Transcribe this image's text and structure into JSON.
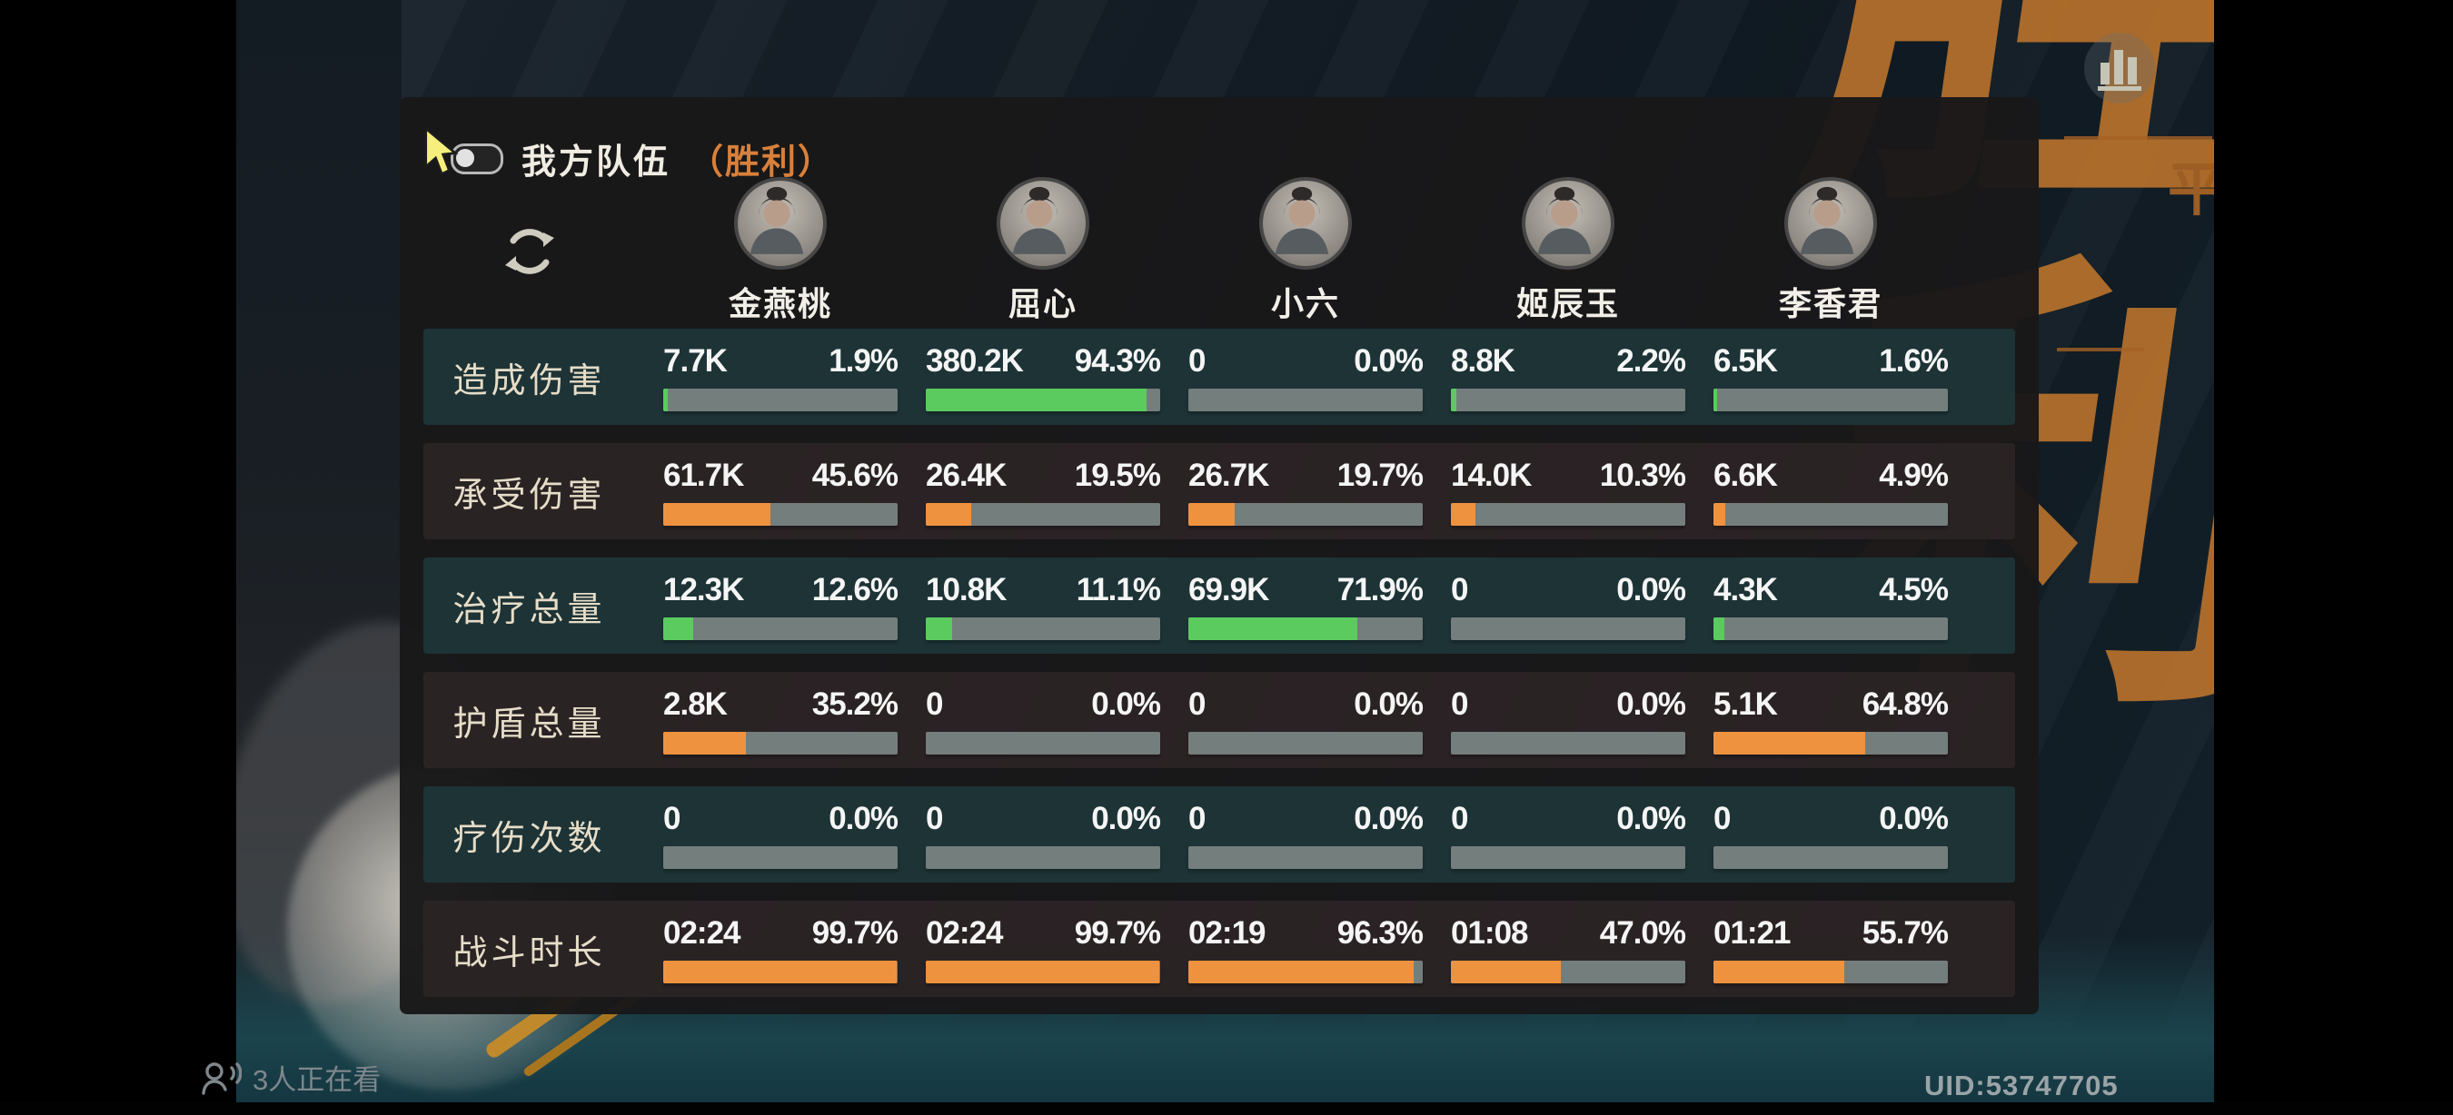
{
  "header": {
    "title": "我方队伍",
    "result": "（胜利）"
  },
  "team": {
    "characters": [
      {
        "name": "金燕桃"
      },
      {
        "name": "屈心"
      },
      {
        "name": "小六"
      },
      {
        "name": "姬辰玉"
      },
      {
        "name": "李香君"
      }
    ]
  },
  "stats": {
    "rows": [
      {
        "label": "造成伤害",
        "color": "green",
        "cells": [
          {
            "value": "7.7K",
            "pct": "1.9%",
            "fill": 1.9
          },
          {
            "value": "380.2K",
            "pct": "94.3%",
            "fill": 94.3
          },
          {
            "value": "0",
            "pct": "0.0%",
            "fill": 0
          },
          {
            "value": "8.8K",
            "pct": "2.2%",
            "fill": 2.2
          },
          {
            "value": "6.5K",
            "pct": "1.6%",
            "fill": 1.6
          }
        ]
      },
      {
        "label": "承受伤害",
        "color": "orange",
        "cells": [
          {
            "value": "61.7K",
            "pct": "45.6%",
            "fill": 45.6
          },
          {
            "value": "26.4K",
            "pct": "19.5%",
            "fill": 19.5
          },
          {
            "value": "26.7K",
            "pct": "19.7%",
            "fill": 19.7
          },
          {
            "value": "14.0K",
            "pct": "10.3%",
            "fill": 10.3
          },
          {
            "value": "6.6K",
            "pct": "4.9%",
            "fill": 4.9
          }
        ]
      },
      {
        "label": "治疗总量",
        "color": "green",
        "cells": [
          {
            "value": "12.3K",
            "pct": "12.6%",
            "fill": 12.6
          },
          {
            "value": "10.8K",
            "pct": "11.1%",
            "fill": 11.1
          },
          {
            "value": "69.9K",
            "pct": "71.9%",
            "fill": 71.9
          },
          {
            "value": "0",
            "pct": "0.0%",
            "fill": 0
          },
          {
            "value": "4.3K",
            "pct": "4.5%",
            "fill": 4.5
          }
        ]
      },
      {
        "label": "护盾总量",
        "color": "orange",
        "cells": [
          {
            "value": "2.8K",
            "pct": "35.2%",
            "fill": 35.2
          },
          {
            "value": "0",
            "pct": "0.0%",
            "fill": 0
          },
          {
            "value": "0",
            "pct": "0.0%",
            "fill": 0
          },
          {
            "value": "0",
            "pct": "0.0%",
            "fill": 0
          },
          {
            "value": "5.1K",
            "pct": "64.8%",
            "fill": 64.8
          }
        ]
      },
      {
        "label": "疗伤次数",
        "color": "green",
        "cells": [
          {
            "value": "0",
            "pct": "0.0%",
            "fill": 0
          },
          {
            "value": "0",
            "pct": "0.0%",
            "fill": 0
          },
          {
            "value": "0",
            "pct": "0.0%",
            "fill": 0
          },
          {
            "value": "0",
            "pct": "0.0%",
            "fill": 0
          },
          {
            "value": "0",
            "pct": "0.0%",
            "fill": 0
          }
        ]
      },
      {
        "label": "战斗时长",
        "color": "orange",
        "cells": [
          {
            "value": "02:24",
            "pct": "99.7%",
            "fill": 99.7
          },
          {
            "value": "02:24",
            "pct": "99.7%",
            "fill": 99.7
          },
          {
            "value": "02:19",
            "pct": "96.3%",
            "fill": 96.3
          },
          {
            "value": "01:08",
            "pct": "47.0%",
            "fill": 47.0
          },
          {
            "value": "01:21",
            "pct": "55.7%",
            "fill": 55.7
          }
        ]
      }
    ]
  },
  "footer": {
    "viewers": "3人正在看",
    "uid": "UID:53747705"
  },
  "decor": {
    "victory_char_1": "胜",
    "victory_char_2": "利",
    "ornament_glyph": "平"
  },
  "colors": {
    "green": "#5bcb5f",
    "orange": "#ef9240",
    "track": "#747e7c",
    "teal_band": "#1d3336",
    "dark_band": "#2c2425",
    "result_orange": "#d9803a",
    "victory_gold": "#b26f2c"
  }
}
